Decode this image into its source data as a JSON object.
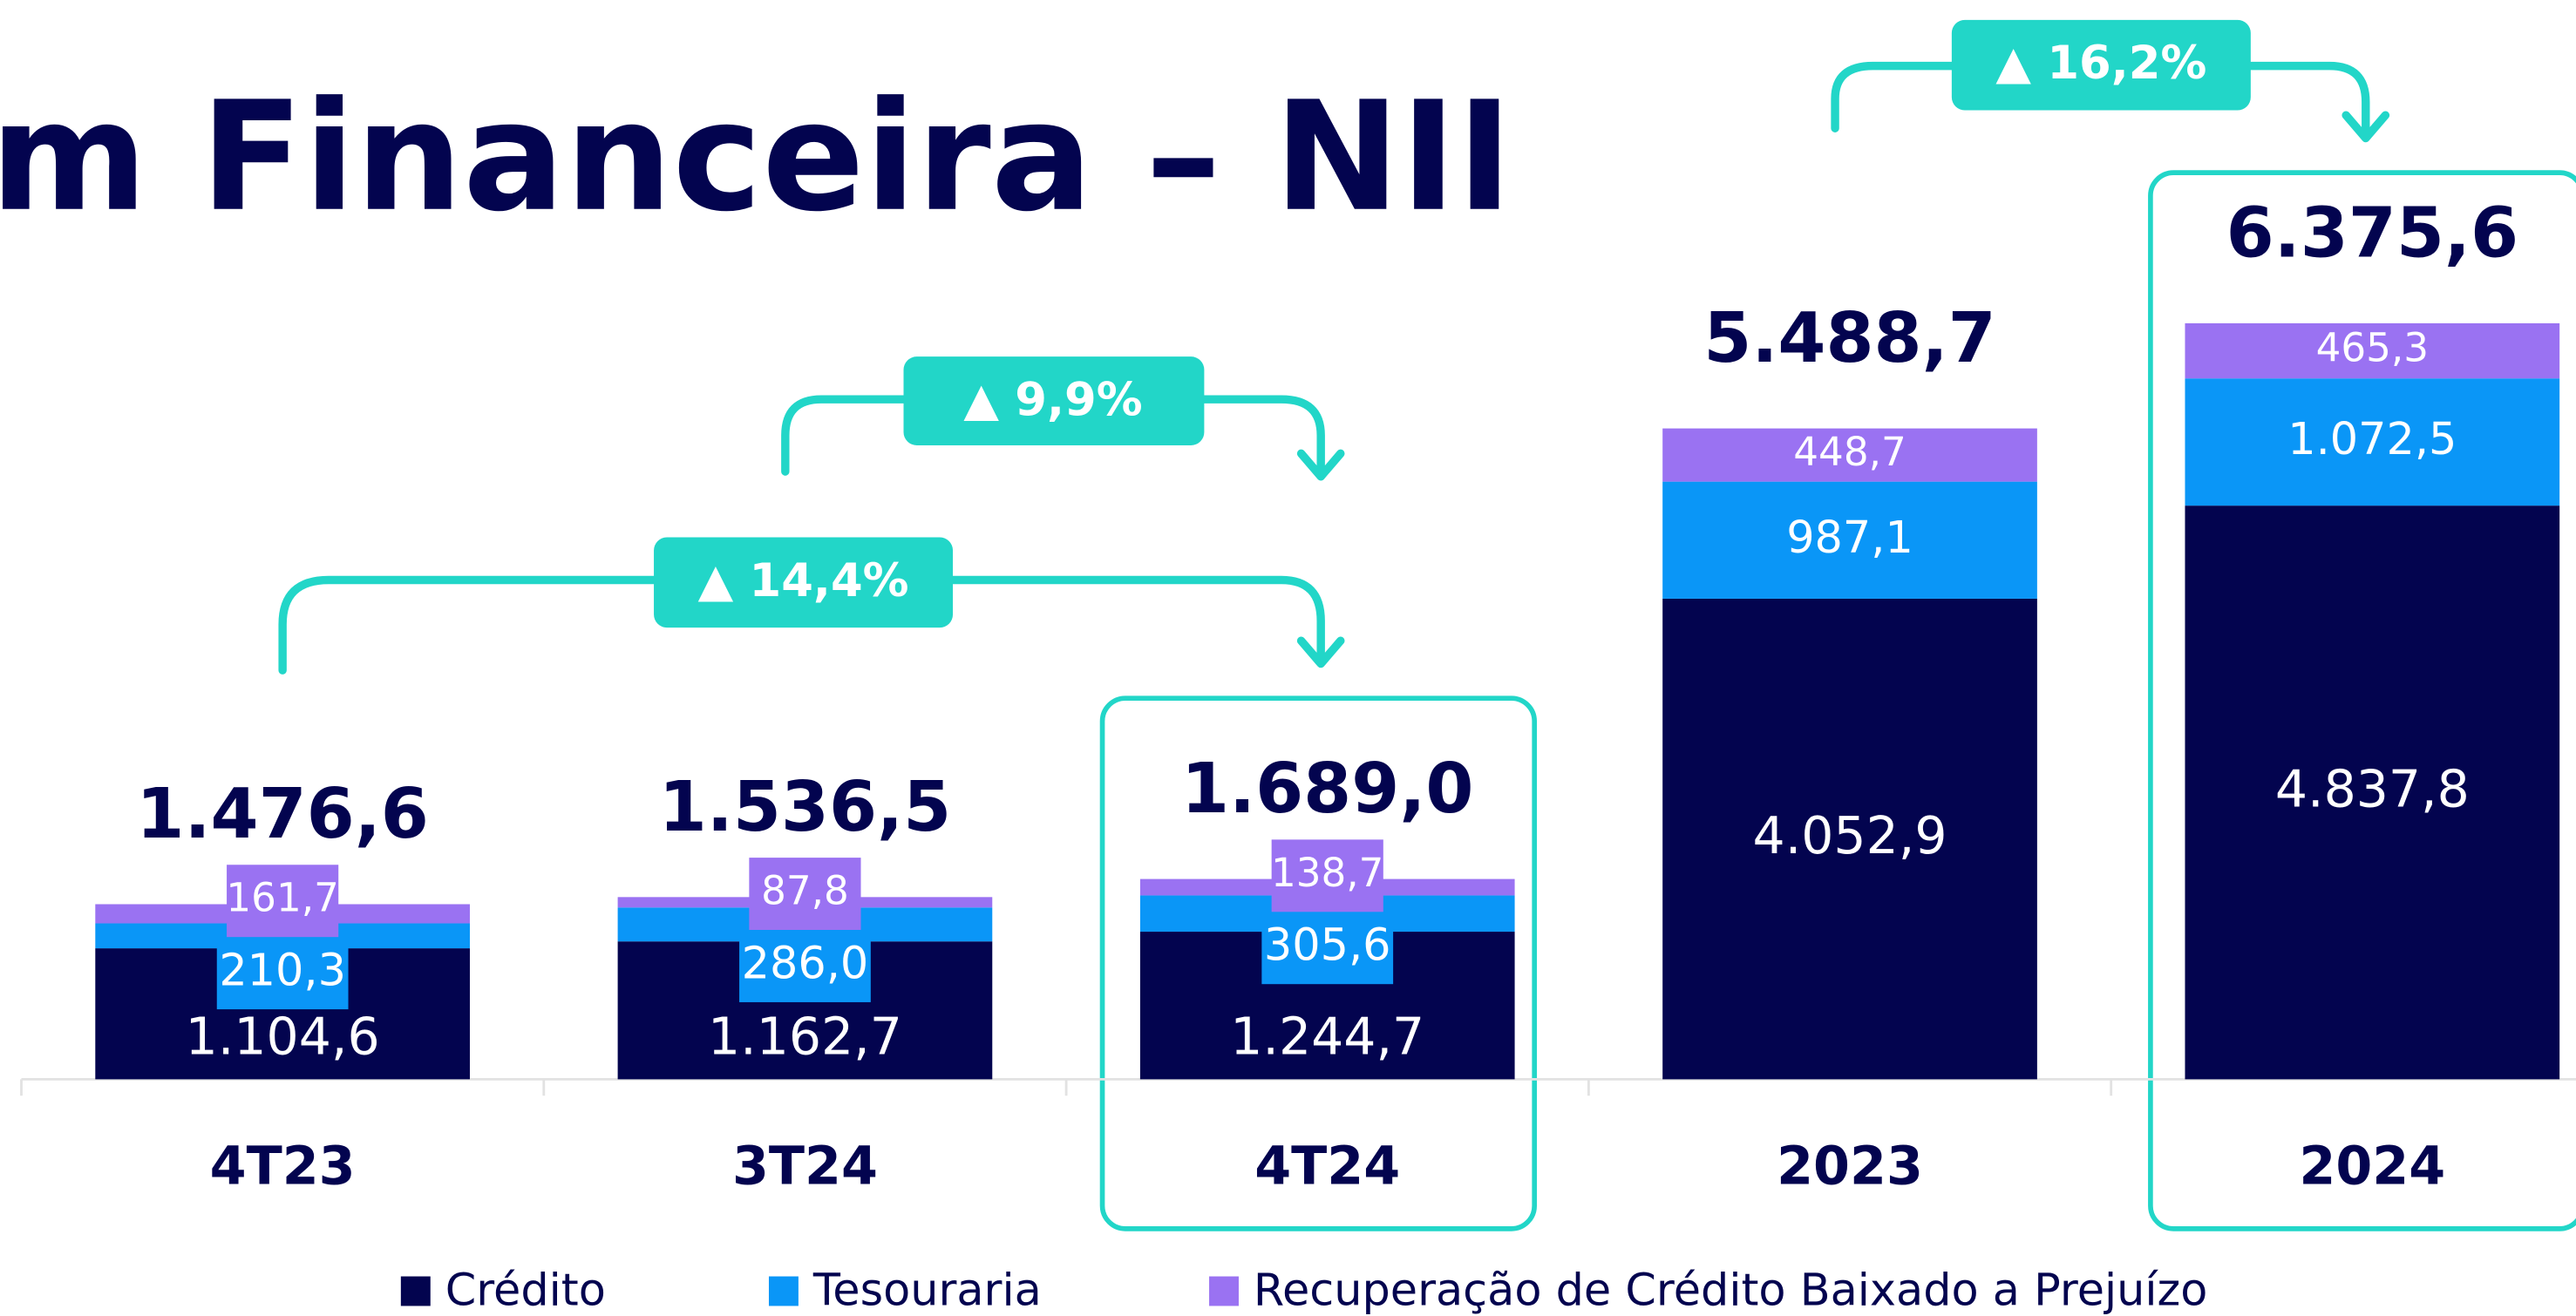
{
  "chart_data": {
    "type": "stacked_bar",
    "title": "m Financeira – NII",
    "categories": [
      "4T23",
      "3T24",
      "4T24",
      "2023",
      "2024"
    ],
    "series": [
      {
        "name": "Crédito",
        "color": "#03044f",
        "values": [
          1104.6,
          1162.7,
          1244.7,
          4052.9,
          4837.8
        ],
        "value_labels": [
          "1.104,6",
          "1.162,7",
          "1.244,7",
          "4.052,9",
          "4.837,8"
        ]
      },
      {
        "name": "Tesouraria",
        "color": "#0a96f7",
        "values": [
          210.3,
          286.0,
          305.6,
          987.1,
          1072.5
        ],
        "value_labels": [
          "210,3",
          "286,0",
          "305,6",
          "987,1",
          "1.072,5"
        ]
      },
      {
        "name": "Recuperação de Crédito Baixado a Prejuízo",
        "color": "#9a72f2",
        "values": [
          161.7,
          87.8,
          138.7,
          448.7,
          465.3
        ],
        "value_labels": [
          "161,7",
          "87,8",
          "138,7",
          "448,7",
          "465,3"
        ]
      }
    ],
    "totals": [
      1476.6,
      1536.5,
      1689.0,
      5488.7,
      6375.6
    ],
    "total_labels": [
      "1.476,6",
      "1.536,5",
      "1.689,0",
      "5.488,7",
      "6.375,6"
    ],
    "ylim": [
      0,
      9100
    ],
    "annotations": [
      "▲ 9,9%",
      "▲ 14,4%",
      "▲ 16,2%"
    ]
  }
}
